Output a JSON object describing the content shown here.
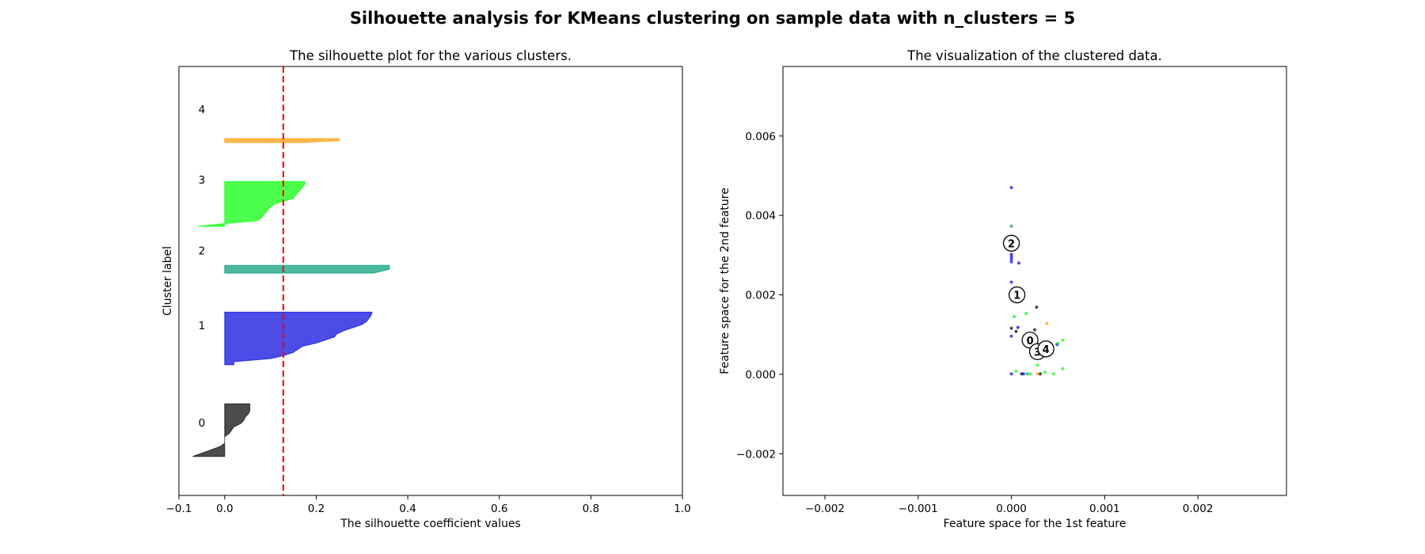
{
  "figure": {
    "suptitle": "Silhouette analysis for KMeans clustering on sample data with n_clusters = 5"
  },
  "chart_data": [
    {
      "type": "area",
      "title": "The silhouette plot for the various clusters.",
      "xlabel": "The silhouette coefficient values",
      "ylabel": "Cluster label",
      "xlim": [
        -0.1,
        1.0
      ],
      "ylim": [
        0,
        110
      ],
      "xticks": [
        -0.1,
        0.0,
        0.2,
        0.4,
        0.6,
        0.8,
        1.0
      ],
      "xtick_labels": [
        "−0.1",
        "0.0",
        "0.2",
        "0.4",
        "0.6",
        "0.8",
        "1.0"
      ],
      "yticks": [],
      "average_silhouette": 0.128,
      "average_line_color": "#ff0000",
      "clusters": [
        {
          "label": "0",
          "color": "#000000",
          "y_start": 10,
          "y_end": 23.5,
          "label_y": 18.7,
          "values": [
            -0.07,
            -0.05,
            -0.03,
            -0.01,
            0.0,
            0.0,
            0.0,
            0.01,
            0.015,
            0.02,
            0.035,
            0.042,
            0.045,
            0.052,
            0.055,
            0.055,
            0.055
          ]
        },
        {
          "label": "1",
          "color": "#0000dd",
          "y_start": 33.5,
          "y_end": 47,
          "label_y": 43.6,
          "values": [
            0.02,
            0.02,
            0.1,
            0.13,
            0.15,
            0.16,
            0.17,
            0.2,
            0.22,
            0.24,
            0.245,
            0.26,
            0.28,
            0.3,
            0.31,
            0.315,
            0.32,
            0.322
          ]
        },
        {
          "label": "2",
          "color": "#009a7a",
          "y_start": 57,
          "y_end": 59,
          "label_y": 62.8,
          "values": [
            0.325,
            0.36,
            0.36
          ]
        },
        {
          "label": "3",
          "color": "#00ff00",
          "y_start": 69,
          "y_end": 80.5,
          "label_y": 81,
          "values": [
            -0.06,
            0.0,
            0.07,
            0.08,
            0.085,
            0.09,
            0.095,
            0.1,
            0.11,
            0.13,
            0.15,
            0.155,
            0.16,
            0.165,
            0.17,
            0.175,
            0.175
          ]
        },
        {
          "label": "4",
          "color": "#ff9900",
          "y_start": 90.5,
          "y_end": 91.5,
          "label_y": 99,
          "values": [
            0.17,
            0.25,
            0.25
          ]
        }
      ]
    },
    {
      "type": "scatter",
      "title": "The visualization of the clustered data.",
      "xlabel": "Feature space for the 1st feature",
      "ylabel": "Feature space for the 2nd feature",
      "xlim": [
        -0.00245,
        0.00295
      ],
      "ylim": [
        -0.00305,
        0.00775
      ],
      "xticks": [
        -0.002,
        -0.001,
        0.0,
        0.001,
        0.002
      ],
      "xtick_labels": [
        "−0.002",
        "−0.001",
        "0.000",
        "0.001",
        "0.002"
      ],
      "yticks": [
        -0.002,
        0.0,
        0.002,
        0.004,
        0.006
      ],
      "ytick_labels": [
        "−0.002",
        "0.000",
        "0.002",
        "0.004",
        "0.006"
      ],
      "cluster_colors": [
        "#000000",
        "#0000dd",
        "#009a7a",
        "#00ff00",
        "#ff9900"
      ],
      "points": [
        {
          "x": 0.0,
          "y": 0.0047,
          "c": 1
        },
        {
          "x": 0.0,
          "y": 0.00373,
          "c": 2
        },
        {
          "x": 0.0,
          "y": 0.00302,
          "c": 1
        },
        {
          "x": 0.0,
          "y": 0.00296,
          "c": 1
        },
        {
          "x": 0.0,
          "y": 0.0029,
          "c": 1
        },
        {
          "x": 0.0,
          "y": 0.00283,
          "c": 1
        },
        {
          "x": 8e-05,
          "y": 0.0028,
          "c": 1
        },
        {
          "x": 0.0,
          "y": 0.00232,
          "c": 1
        },
        {
          "x": 0.00016,
          "y": 0.00153,
          "c": 3
        },
        {
          "x": 0.00027,
          "y": 0.00169,
          "c": 0
        },
        {
          "x": 3e-05,
          "y": 0.00145,
          "c": 3
        },
        {
          "x": 0.00038,
          "y": 0.00128,
          "c": 4
        },
        {
          "x": 0.0,
          "y": 0.00116,
          "c": 0
        },
        {
          "x": 7e-05,
          "y": 0.00118,
          "c": 1
        },
        {
          "x": 5e-05,
          "y": 0.00108,
          "c": 0
        },
        {
          "x": 0.0,
          "y": 0.00096,
          "c": 1
        },
        {
          "x": 0.00025,
          "y": 0.00112,
          "c": 0
        },
        {
          "x": 0.00055,
          "y": 0.00086,
          "c": 3
        },
        {
          "x": 0.00049,
          "y": 0.00075,
          "c": 1
        },
        {
          "x": 0.0005,
          "y": 0.00078,
          "c": 3
        },
        {
          "x": 0.00028,
          "y": 0.00023,
          "c": 3
        },
        {
          "x": 0.00055,
          "y": 0.00014,
          "c": 3
        },
        {
          "x": 5e-05,
          "y": 8e-05,
          "c": 3
        },
        {
          "x": 0.0,
          "y": 1e-05,
          "c": 1
        },
        {
          "x": 0.00011,
          "y": 1e-05,
          "c": 0
        },
        {
          "x": 0.00013,
          "y": 1e-05,
          "c": 1
        },
        {
          "x": 0.00017,
          "y": 1e-05,
          "c": 2
        },
        {
          "x": 0.0002,
          "y": 1e-05,
          "c": 3
        },
        {
          "x": 0.00028,
          "y": 1e-05,
          "c": 4
        },
        {
          "x": 0.00031,
          "y": 1e-05,
          "c": 0
        },
        {
          "x": 0.00036,
          "y": 5e-05,
          "c": 3
        },
        {
          "x": 0.00045,
          "y": 1e-05,
          "c": 3
        }
      ],
      "centers": [
        {
          "label": "0",
          "x": 0.0002,
          "y": 0.00086
        },
        {
          "label": "1",
          "x": 6e-05,
          "y": 0.002
        },
        {
          "label": "2",
          "x": 0.0,
          "y": 0.0033
        },
        {
          "label": "3",
          "x": 0.00028,
          "y": 0.00057
        },
        {
          "label": "4",
          "x": 0.00037,
          "y": 0.00064
        }
      ]
    }
  ]
}
